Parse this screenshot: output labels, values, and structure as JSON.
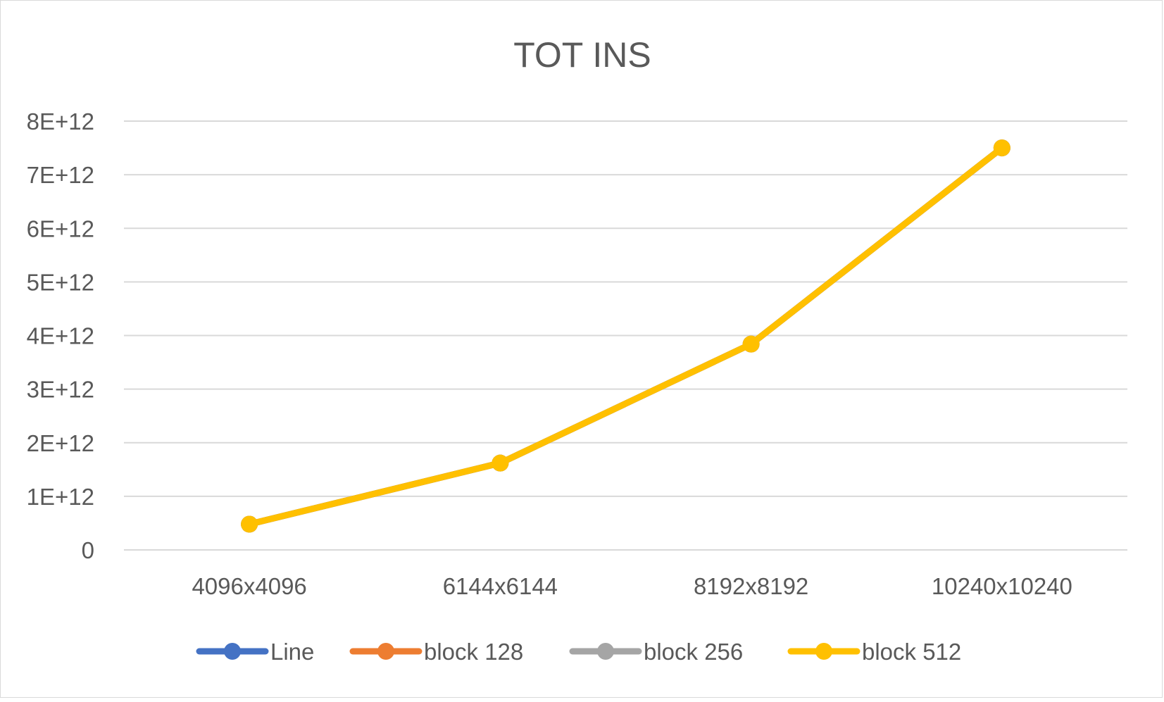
{
  "chart_data": {
    "type": "line",
    "title": "TOT INS",
    "xlabel": "",
    "ylabel": "",
    "categories": [
      "4096x4096",
      "6144x6144",
      "8192x8192",
      "10240x10240"
    ],
    "ylim": [
      0,
      8000000000000
    ],
    "y_ticks": [
      "0",
      "1E+12",
      "2E+12",
      "3E+12",
      "4E+12",
      "5E+12",
      "6E+12",
      "7E+12",
      "8E+12"
    ],
    "grid": true,
    "legend_position": "bottom",
    "series": [
      {
        "name": "Line",
        "color": "#4472c4",
        "values": [
          480000000000,
          1620000000000,
          3840000000000,
          7500000000000
        ]
      },
      {
        "name": "block 128",
        "color": "#ed7d31",
        "values": [
          480000000000,
          1620000000000,
          3840000000000,
          7500000000000
        ]
      },
      {
        "name": "block 256",
        "color": "#a5a5a5",
        "values": [
          480000000000,
          1620000000000,
          3840000000000,
          7500000000000
        ]
      },
      {
        "name": "block 512",
        "color": "#ffc000",
        "values": [
          480000000000,
          1620000000000,
          3840000000000,
          7500000000000
        ]
      }
    ]
  }
}
